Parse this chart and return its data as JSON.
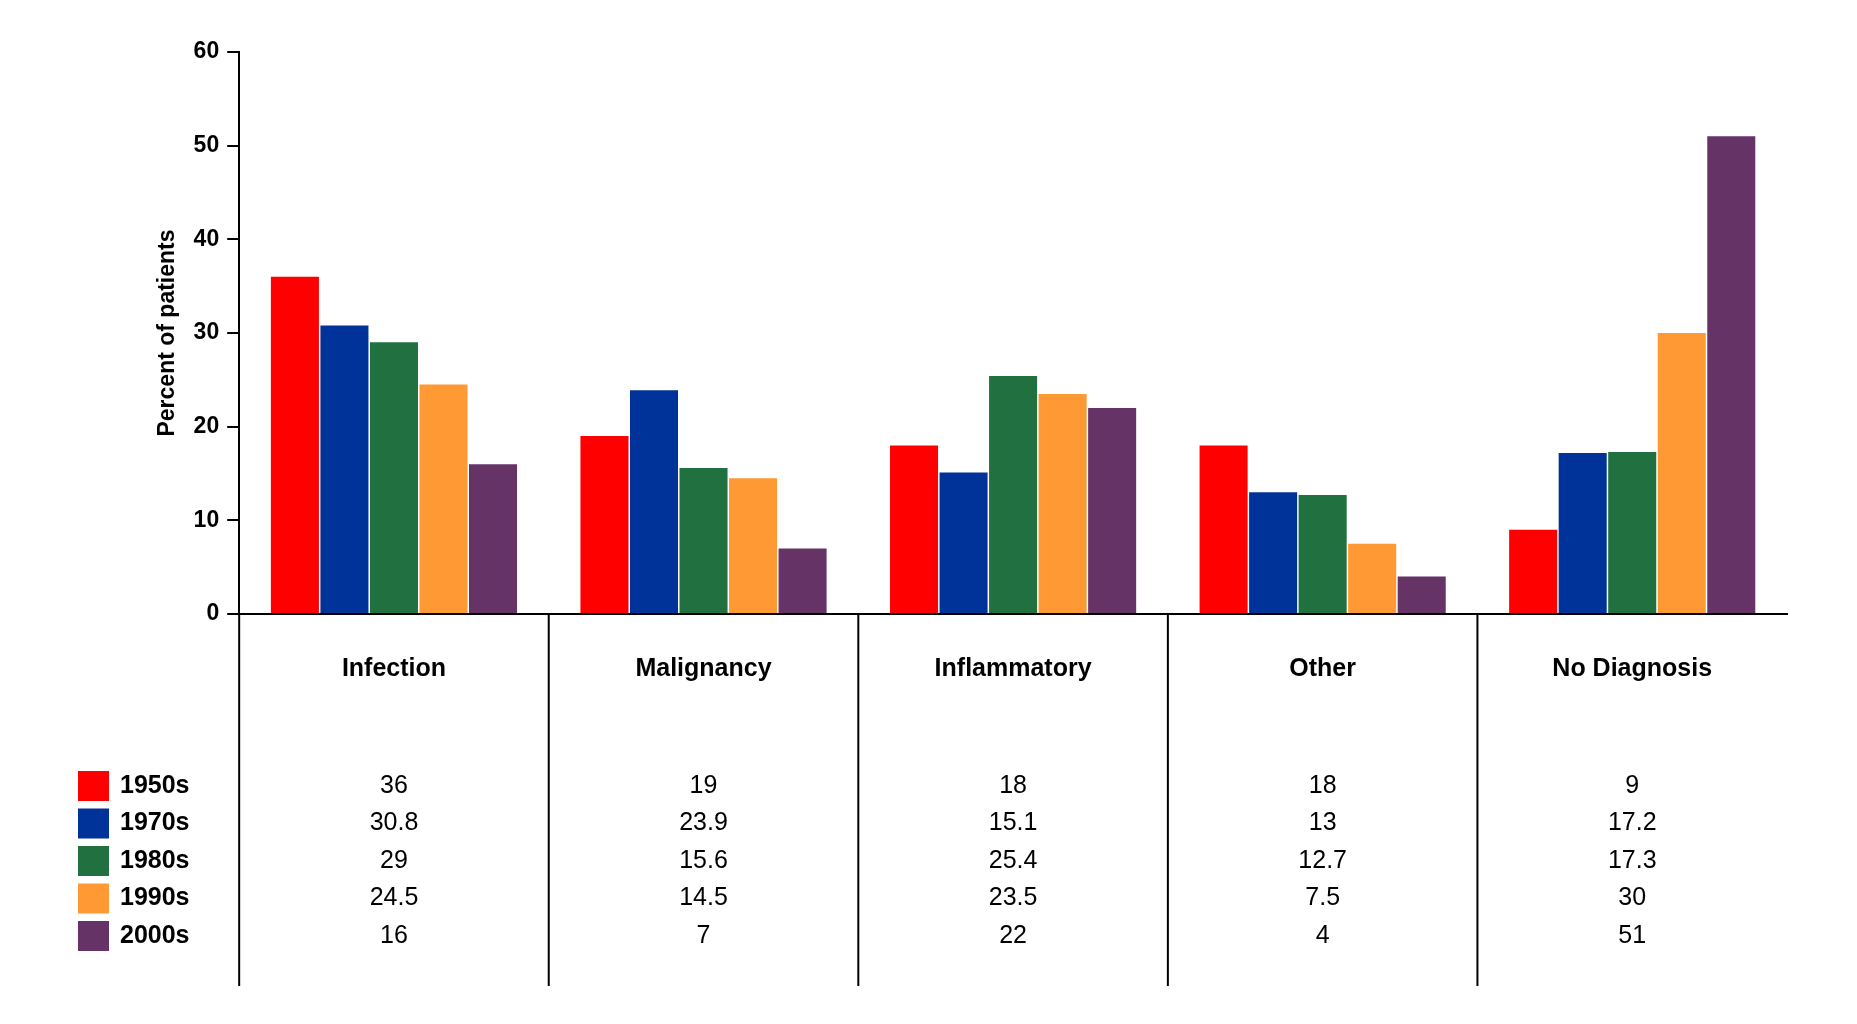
{
  "chart_data": {
    "type": "bar",
    "ylabel": "Percent of patients",
    "categories": [
      "Infection",
      "Malignancy",
      "Inflammatory",
      "Other",
      "No Diagnosis"
    ],
    "series": [
      {
        "name": "1950s",
        "color": "#ff0000",
        "values": [
          36,
          19,
          18,
          18,
          9
        ]
      },
      {
        "name": "1970s",
        "color": "#003399",
        "values": [
          30.8,
          23.9,
          15.1,
          13,
          17.2
        ]
      },
      {
        "name": "1980s",
        "color": "#217140",
        "values": [
          29,
          15.6,
          25.4,
          12.7,
          17.3
        ]
      },
      {
        "name": "1990s",
        "color": "#ff9933",
        "values": [
          24.5,
          14.5,
          23.5,
          7.5,
          30
        ]
      },
      {
        "name": "2000s",
        "color": "#663366",
        "values": [
          16,
          7,
          22,
          4,
          51
        ]
      }
    ],
    "ylim": [
      0,
      60
    ],
    "yticks": [
      0,
      10,
      20,
      30,
      40,
      50,
      60
    ],
    "grid": false,
    "legend": "bottom left",
    "data_labels": true
  }
}
